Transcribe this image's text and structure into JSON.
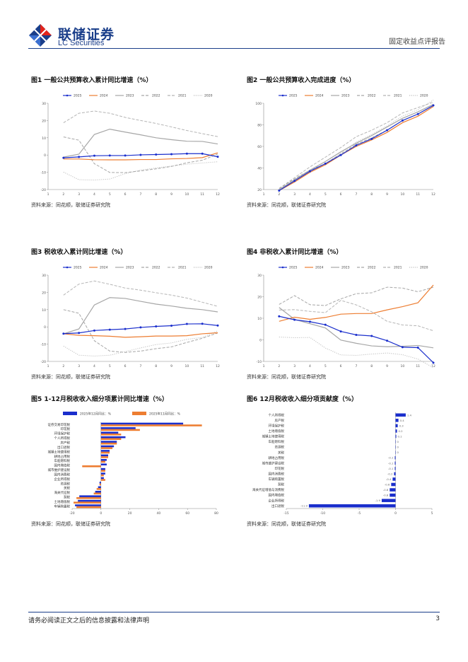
{
  "header": {
    "logo_cn": "联储证券",
    "logo_en": "LC Securities",
    "report_type": "固定收益点评报告",
    "brand_color": "#1a3e8a",
    "accent_color": "#e2231a"
  },
  "footer": {
    "disclaimer": "请务必阅读正文之后的信息披露和法律声明",
    "page": "3"
  },
  "figures": [
    {
      "title": "图1  一般公共预算收入累计同比增速（%）",
      "source": "资料来源：同花顺，联储证券研究院"
    },
    {
      "title": "图2  一般公共预算收入完成进度（%）",
      "source": "资料来源：同花顺，联储证券研究院"
    },
    {
      "title": "图3  税收收入累计同比增速（%）",
      "source": "资料来源：同花顺，联储证券研究院"
    },
    {
      "title": "图4  非税收入累计同比增速（%）",
      "source": "资料来源：同花顺，联储证券研究院"
    },
    {
      "title": "图5  1-12月税收收入细分项累计同比增速（%）",
      "source": "资料来源：同花顺，联储证券研究院"
    },
    {
      "title": "图6  12月税收收入细分项贡献度（%）",
      "source": "资料来源：同花顺，联储证券研究院"
    }
  ],
  "chart_data": [
    {
      "type": "line",
      "id": "fig1",
      "title": "一般公共预算收入累计同比增速（%）",
      "x": [
        2,
        3,
        4,
        5,
        6,
        7,
        8,
        9,
        10,
        11,
        12
      ],
      "xlim": [
        1,
        12
      ],
      "ylim": [
        -20,
        30
      ],
      "yticks": [
        -20,
        -10,
        0,
        10,
        20,
        30
      ],
      "series": [
        {
          "name": "2025",
          "style": "marker",
          "color": "#1a2ecc",
          "values": [
            -1.6,
            -1.1,
            -0.4,
            -0.3,
            -0.3,
            0.1,
            0.3,
            0.5,
            0.8,
            0.8,
            -1.0
          ]
        },
        {
          "name": "2024",
          "style": "solid",
          "color": "#ed7d31",
          "values": [
            -2.3,
            -2.3,
            -2.7,
            -2.8,
            -2.8,
            -2.6,
            -2.6,
            -2.2,
            -2.0,
            -1.5,
            1.3
          ]
        },
        {
          "name": "2023",
          "style": "solid",
          "color": "#a6a6a6",
          "values": [
            -1.2,
            0.5,
            11.9,
            15.0,
            13.3,
            11.7,
            10.0,
            8.9,
            8.0,
            7.9,
            6.4
          ]
        },
        {
          "name": "2022",
          "style": "dashed",
          "color": "#a6a6a6",
          "values": [
            10.5,
            8.6,
            -5.0,
            -10.1,
            -10.2,
            -9.2,
            -8.0,
            -6.6,
            -4.5,
            -3.0,
            0.6
          ]
        },
        {
          "name": "2021",
          "style": "dashed",
          "color": "#b5b5b5",
          "values": [
            18.7,
            24.2,
            25.5,
            24.2,
            21.8,
            20.0,
            18.3,
            16.3,
            14.2,
            12.4,
            10.7
          ]
        },
        {
          "name": "2020",
          "style": "dotted",
          "color": "#bfbfbf",
          "values": [
            -9.9,
            -14.3,
            -14.5,
            -13.9,
            -10.8,
            -8.7,
            -7.5,
            -6.4,
            -5.3,
            -4.6,
            -3.9
          ]
        }
      ]
    },
    {
      "type": "line",
      "id": "fig2",
      "title": "一般公共预算收入完成进度（%）",
      "x": [
        2,
        3,
        4,
        5,
        6,
        7,
        8,
        9,
        10,
        11,
        12
      ],
      "xlim": [
        1,
        12
      ],
      "ylim": [
        20,
        100
      ],
      "yticks": [
        20,
        40,
        60,
        80,
        100
      ],
      "series": [
        {
          "name": "2025",
          "style": "marker",
          "color": "#1a2ecc",
          "values": [
            19,
            28,
            37,
            44,
            52,
            61,
            67,
            75,
            84,
            90,
            98
          ]
        },
        {
          "name": "2024",
          "style": "solid",
          "color": "#ed7d31",
          "values": [
            19,
            27,
            36,
            43,
            52,
            60,
            66,
            73,
            82,
            88,
            97
          ]
        },
        {
          "name": "2023",
          "style": "solid",
          "color": "#a6a6a6",
          "values": [
            20,
            29,
            38,
            46,
            55,
            63,
            70,
            78,
            86,
            92,
            99
          ]
        },
        {
          "name": "2022",
          "style": "dashed",
          "color": "#a6a6a6",
          "values": [
            21,
            30,
            38,
            44,
            53,
            62,
            68,
            75,
            84,
            90,
            98
          ]
        },
        {
          "name": "2021",
          "style": "dashed",
          "color": "#b5b5b5",
          "values": [
            21,
            31,
            41,
            50,
            59,
            69,
            75,
            82,
            91,
            96,
            101
          ]
        },
        {
          "name": "2020",
          "style": "dotted",
          "color": "#bfbfbf",
          "values": [
            20,
            28,
            36,
            44,
            54,
            64,
            71,
            79,
            88,
            94,
            103
          ]
        }
      ]
    },
    {
      "type": "line",
      "id": "fig3",
      "title": "税收收入累计同比增速（%）",
      "x": [
        2,
        3,
        4,
        5,
        6,
        7,
        8,
        9,
        10,
        11,
        12
      ],
      "xlim": [
        1,
        12
      ],
      "ylim": [
        -20,
        30
      ],
      "yticks": [
        -20,
        -10,
        0,
        10,
        20,
        30
      ],
      "series": [
        {
          "name": "2025",
          "style": "marker",
          "color": "#1a2ecc",
          "values": [
            -3.9,
            -3.5,
            -2.1,
            -1.6,
            -1.2,
            -0.3,
            0.3,
            0.7,
            1.7,
            1.8,
            0.8
          ]
        },
        {
          "name": "2024",
          "style": "solid",
          "color": "#ed7d31",
          "values": [
            -4.0,
            -4.9,
            -5.1,
            -5.4,
            -6.0,
            -5.7,
            -5.3,
            -5.3,
            -5.1,
            -4.0,
            -3.4
          ]
        },
        {
          "name": "2023",
          "style": "solid",
          "color": "#a6a6a6",
          "values": [
            -4.0,
            -1.2,
            12.7,
            17.0,
            16.5,
            14.8,
            13.2,
            12.1,
            10.8,
            10.0,
            8.7
          ]
        },
        {
          "name": "2022",
          "style": "dashed",
          "color": "#a6a6a6",
          "values": [
            10.0,
            7.9,
            -8.0,
            -14.0,
            -14.8,
            -14.0,
            -12.6,
            -11.6,
            -9.0,
            -6.6,
            -3.5
          ]
        },
        {
          "name": "2021",
          "style": "dashed",
          "color": "#b5b5b5",
          "values": [
            18.4,
            24.8,
            26.6,
            24.7,
            22.5,
            21.3,
            19.8,
            18.4,
            16.7,
            14.3,
            11.9
          ]
        },
        {
          "name": "2020",
          "style": "dotted",
          "color": "#bfbfbf",
          "values": [
            -11.1,
            -16.4,
            -16.9,
            -16.4,
            -14.3,
            -12.2,
            -10.2,
            -9.3,
            -7.2,
            -6.1,
            -2.3
          ]
        }
      ]
    },
    {
      "type": "line",
      "id": "fig4",
      "title": "非税收入累计同比增速（%）",
      "x": [
        2,
        3,
        4,
        5,
        6,
        7,
        8,
        9,
        10,
        11,
        12
      ],
      "xlim": [
        1,
        12
      ],
      "ylim": [
        -10,
        30
      ],
      "yticks": [
        -10,
        0,
        10,
        20,
        30
      ],
      "series": [
        {
          "name": "2025",
          "style": "marker",
          "color": "#1a2ecc",
          "values": [
            10.9,
            9.3,
            8.4,
            7.0,
            3.9,
            2.3,
            1.8,
            -0.4,
            -3.4,
            -3.6,
            -10.6
          ]
        },
        {
          "name": "2024",
          "style": "solid",
          "color": "#ed7d31",
          "values": [
            8.6,
            10.5,
            9.5,
            10.4,
            11.9,
            12.2,
            12.2,
            13.9,
            15.4,
            17.2,
            25.4
          ]
        },
        {
          "name": "2023",
          "style": "solid",
          "color": "#a6a6a6",
          "values": [
            15.0,
            9.5,
            7.5,
            5.5,
            -0.1,
            -1.6,
            -2.8,
            -3.2,
            -3.0,
            -2.6,
            -3.7
          ]
        },
        {
          "name": "2022",
          "style": "dashed",
          "color": "#a6a6a6",
          "values": [
            16.4,
            20.5,
            16.3,
            15.9,
            19.0,
            21.4,
            21.8,
            24.4,
            24.0,
            22.3,
            24.4
          ]
        },
        {
          "name": "2021",
          "style": "dashed",
          "color": "#b5b5b5",
          "values": [
            13.8,
            14.0,
            13.2,
            12.6,
            18.3,
            16.2,
            13.0,
            8.6,
            6.9,
            6.5,
            4.2
          ]
        },
        {
          "name": "2020",
          "style": "dotted",
          "color": "#bfbfbf",
          "values": [
            1.3,
            1.0,
            1.1,
            -3.8,
            -7.0,
            -7.2,
            -6.6,
            -6.1,
            -6.9,
            -8.9,
            -12.9
          ]
        }
      ]
    },
    {
      "type": "bar",
      "id": "fig5",
      "orientation": "horizontal",
      "title": "1-12月税收收入细分项累计同比增速（%）",
      "categories": [
        "证券交易印花税",
        "印花税",
        "环境保护税",
        "个人所得税",
        "房产税",
        "出口退税",
        "城镇土地使用税",
        "耕地占用税",
        "车船燃料税",
        "国内增值税",
        "城市维护建设税",
        "国内消费税",
        "企业所得税",
        "资源税",
        "关税",
        "海关代征税",
        "契税",
        "土地增值税",
        "车辆购置税"
      ],
      "xlim": [
        -20,
        80
      ],
      "xticks": [
        -20,
        0,
        20,
        40,
        60,
        80
      ],
      "series": [
        {
          "name": "2025年12月同比：%",
          "color": "#1a2ecc",
          "values": [
            57,
            24,
            12,
            17,
            11,
            9,
            6,
            5,
            4,
            4,
            3,
            3,
            2,
            -1,
            -2,
            -4,
            -15,
            -16,
            -18
          ]
        },
        {
          "name": "2025年11月同比：%",
          "color": "#ed7d31",
          "values": [
            70,
            27,
            14,
            14,
            11,
            8,
            6,
            5,
            3,
            -13,
            3,
            2,
            3,
            -1,
            -3,
            -5,
            -17,
            -19,
            -17
          ]
        }
      ]
    },
    {
      "type": "bar",
      "id": "fig6",
      "orientation": "horizontal",
      "title": "12月税收收入细分项贡献度（%）",
      "categories": [
        "个人所得税",
        "房产税",
        "环境保护税",
        "土地增值税",
        "城镇土地使用税",
        "车船燃料税",
        "资源税",
        "关税",
        "耕地占用税",
        "城市维护建设税",
        "印花税",
        "国内消费税",
        "车辆购置税",
        "契税",
        "海关代征增值与消费税",
        "国内增值税",
        "企业所得税",
        "出口退税"
      ],
      "xlim": [
        -15,
        5
      ],
      "xticks": [
        -15,
        -10,
        -5,
        0,
        5
      ],
      "labels": [
        "1.4",
        "0.4",
        "0.3",
        "0.2",
        "0.1",
        "0",
        "0",
        "0",
        "-0.1",
        "-0.1",
        "-0.1",
        "-0.2",
        "-0.4",
        "-0.6",
        "-0.8",
        "-0.8",
        "-1.9",
        "-11.9"
      ],
      "series": [
        {
          "name": "贡献度",
          "color": "#1a2ecc",
          "values": [
            1.4,
            0.4,
            0.3,
            0.2,
            0.1,
            0,
            0,
            0,
            -0.1,
            -0.1,
            -0.1,
            -0.2,
            -0.4,
            -0.6,
            -0.8,
            -0.8,
            -1.9,
            -11.9
          ]
        }
      ]
    }
  ]
}
